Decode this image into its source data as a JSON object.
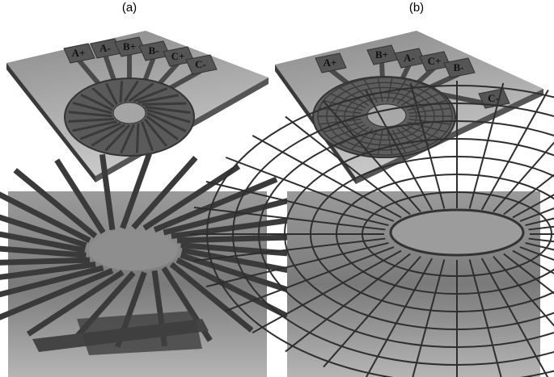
{
  "panels": [
    {
      "label": "(a)",
      "pads": [
        "A+",
        "A-",
        "B+",
        "B-",
        "C+",
        "C-"
      ]
    },
    {
      "label": "(b)",
      "pads": [
        "A+",
        "B+",
        "A-",
        "C+",
        "B-",
        "C-"
      ]
    }
  ]
}
